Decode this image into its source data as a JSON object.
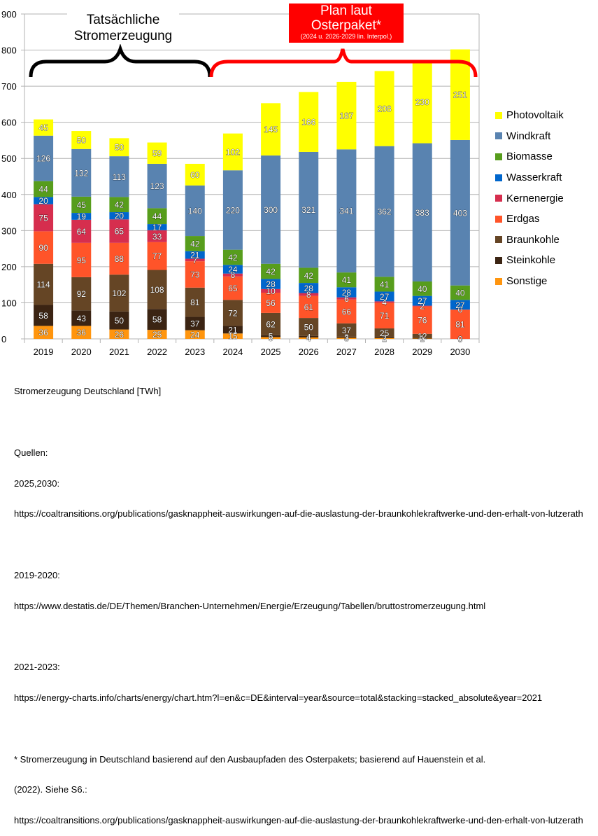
{
  "chart_data": {
    "type": "bar",
    "stacked": true,
    "title": "",
    "xlabel": "",
    "ylabel": "",
    "ylim": [
      0,
      900
    ],
    "yticks": [
      0,
      100,
      200,
      300,
      400,
      500,
      600,
      700,
      800,
      900
    ],
    "grid": true,
    "legend_position": "right",
    "categories": [
      "2019",
      "2020",
      "2021",
      "2022",
      "2023",
      "2024",
      "2025",
      "2026",
      "2027",
      "2028",
      "2029",
      "2030"
    ],
    "series": [
      {
        "name": "Sonstige",
        "color": "#ff950e",
        "values": [
          36,
          36,
          26,
          25,
          24,
          15,
          5,
          4,
          3,
          2,
          1,
          0
        ]
      },
      {
        "name": "Steinkohle",
        "color": "#3b2413",
        "values": [
          58,
          43,
          50,
          58,
          37,
          21,
          5,
          4,
          3,
          2,
          1,
          0
        ]
      },
      {
        "name": "Braunkohle",
        "color": "#654525",
        "values": [
          114,
          92,
          102,
          108,
          81,
          72,
          62,
          50,
          37,
          25,
          12,
          0
        ]
      },
      {
        "name": "Erdgas",
        "color": "#ff5429",
        "values": [
          90,
          95,
          88,
          77,
          73,
          65,
          56,
          61,
          66,
          71,
          76,
          81
        ]
      },
      {
        "name": "Kernenergie",
        "color": "#d62e4e",
        "values": [
          75,
          64,
          65,
          33,
          7,
          8,
          10,
          8,
          6,
          4,
          2,
          0
        ]
      },
      {
        "name": "Wasserkraft",
        "color": "#0066cc",
        "values": [
          20,
          19,
          20,
          17,
          21,
          24,
          28,
          28,
          28,
          27,
          27,
          27
        ]
      },
      {
        "name": "Biomasse",
        "color": "#579d1c",
        "values": [
          44,
          45,
          42,
          44,
          42,
          42,
          42,
          42,
          41,
          41,
          40,
          40
        ]
      },
      {
        "name": "Windkraft",
        "color": "#5983b0",
        "values": [
          126,
          132,
          113,
          123,
          140,
          220,
          300,
          321,
          341,
          362,
          383,
          403
        ]
      },
      {
        "name": "Photovoltaik",
        "color": "#ffff00",
        "values": [
          45,
          50,
          50,
          59,
          60,
          102,
          145,
          166,
          187,
          208,
          230,
          251
        ]
      }
    ],
    "legend_order": [
      "Photovoltaik",
      "Windkraft",
      "Biomasse",
      "Wasserkraft",
      "Kernenergie",
      "Erdgas",
      "Braunkohle",
      "Steinkohle",
      "Sonstige"
    ],
    "annotations": {
      "actual": {
        "label": "Tatsächliche Stromerzeugung",
        "line1": "Tatsächliche",
        "line2": "Stromerzeugung",
        "range": [
          "2019",
          "2023"
        ],
        "color": "#000000"
      },
      "plan": {
        "line1": "Plan laut",
        "line2": "Osterpaket*",
        "sub": "(2024 u. 2026-2029 lin. Interpol.)",
        "range": [
          "2024",
          "2030"
        ],
        "color": "#ff0000"
      }
    }
  },
  "notes": {
    "caption": "Stromerzeugung Deutschland [TWh]",
    "sources_heading": "Quellen:",
    "src1_label": "2025,2030:",
    "src1_url": "https://coaltransitions.org/publications/gasknappheit-auswirkungen-auf-die-auslastung-der-braunkohlekraftwerke-und-den-erhalt-von-lutzerath",
    "src2_label": "2019-2020:",
    "src2_url": "https://www.destatis.de/DE/Themen/Branchen-Unternehmen/Energie/Erzeugung/Tabellen/bruttostromerzeugung.html",
    "src3_label": "2021-2023:",
    "src3_url": "https://energy-charts.info/charts/energy/chart.htm?l=en&c=DE&interval=year&source=total&stacking=stacked_absolute&year=2021",
    "footnote_line1": "* Stromerzeugung in Deutschland basierend auf den Ausbaupfaden des Osterpakets; basierend auf Hauenstein et al.",
    "footnote_line2": "(2022). Siehe S6.:",
    "footnote_url": "https://coaltransitions.org/publications/gasknappheit-auswirkungen-auf-die-auslastung-der-braunkohlekraftwerke-und-den-erhalt-von-lutzerath"
  }
}
